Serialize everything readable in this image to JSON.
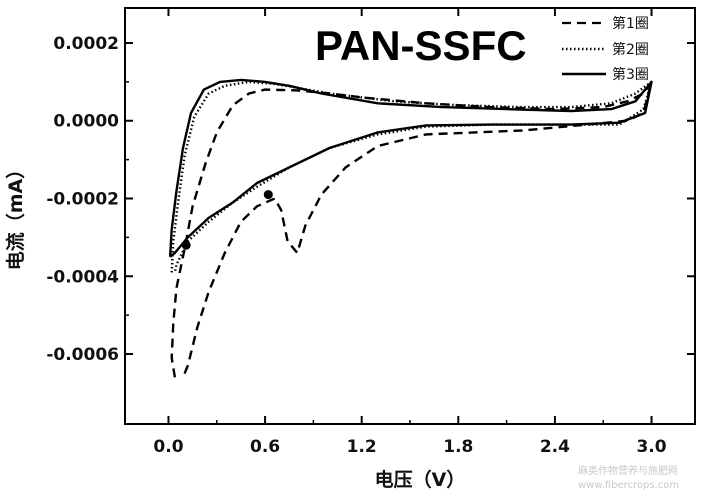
{
  "chart_data": {
    "type": "line",
    "title": "PAN-SSFC",
    "xlabel": "电压（V）",
    "ylabel": "电流（mA）",
    "xlim": [
      -0.27,
      3.27
    ],
    "ylim": [
      -0.00078,
      0.00029
    ],
    "x_ticks": [
      0.0,
      0.6,
      1.2,
      1.8,
      2.4,
      3.0
    ],
    "x_tick_labels": [
      "0.0",
      "0.6",
      "1.2",
      "1.8",
      "2.4",
      "3.0"
    ],
    "y_ticks": [
      0.0002,
      0.0,
      -0.0002,
      -0.0004,
      -0.0006
    ],
    "y_tick_labels": [
      "0.0002",
      "0.0000",
      "-0.0002",
      "-0.0004",
      "-0.0006"
    ],
    "legend_position": "top-right",
    "series": [
      {
        "name": "第1圈",
        "style": "dashed",
        "color": "#000000",
        "points": [
          [
            0.04,
            -0.00066
          ],
          [
            0.02,
            -0.00061
          ],
          [
            0.03,
            -0.00052
          ],
          [
            0.05,
            -0.00043
          ],
          [
            0.1,
            -0.00033
          ],
          [
            0.15,
            -0.00022
          ],
          [
            0.23,
            -0.00011
          ],
          [
            0.3,
            -3e-05
          ],
          [
            0.4,
            4e-05
          ],
          [
            0.5,
            7e-05
          ],
          [
            0.6,
            8e-05
          ],
          [
            0.8,
            7.8e-05
          ],
          [
            1.0,
            7e-05
          ],
          [
            1.2,
            6e-05
          ],
          [
            1.6,
            4.5e-05
          ],
          [
            2.0,
            3.5e-05
          ],
          [
            2.4,
            3e-05
          ],
          [
            2.7,
            3.5e-05
          ],
          [
            2.85,
            5e-05
          ],
          [
            2.95,
            7e-05
          ],
          [
            3.0,
            0.0001
          ],
          [
            2.95,
            2e-05
          ],
          [
            2.85,
            0.0
          ],
          [
            2.6,
            -1e-05
          ],
          [
            2.2,
            -2.5e-05
          ],
          [
            1.9,
            -3e-05
          ],
          [
            1.6,
            -3.5e-05
          ],
          [
            1.3,
            -6.5e-05
          ],
          [
            1.1,
            -0.00012
          ],
          [
            0.95,
            -0.00019
          ],
          [
            0.85,
            -0.00027
          ],
          [
            0.8,
            -0.00034
          ],
          [
            0.74,
            -0.00031
          ],
          [
            0.7,
            -0.00023
          ],
          [
            0.66,
            -0.0002
          ],
          [
            0.55,
            -0.00022
          ],
          [
            0.45,
            -0.00026
          ],
          [
            0.35,
            -0.00034
          ],
          [
            0.25,
            -0.00044
          ],
          [
            0.18,
            -0.00053
          ],
          [
            0.12,
            -0.00063
          ],
          [
            0.09,
            -0.00066
          ]
        ]
      },
      {
        "name": "第2圈",
        "style": "dotted",
        "color": "#000000",
        "points": [
          [
            0.02,
            -0.00039
          ],
          [
            0.03,
            -0.00031
          ],
          [
            0.06,
            -0.00021
          ],
          [
            0.1,
            -9e-05
          ],
          [
            0.16,
            1e-05
          ],
          [
            0.25,
            7e-05
          ],
          [
            0.35,
            9e-05
          ],
          [
            0.5,
            0.0001
          ],
          [
            0.65,
            9.5e-05
          ],
          [
            0.8,
            8.5e-05
          ],
          [
            1.0,
            7e-05
          ],
          [
            1.4,
            5e-05
          ],
          [
            1.8,
            4e-05
          ],
          [
            2.2,
            3.5e-05
          ],
          [
            2.5,
            3.5e-05
          ],
          [
            2.75,
            4.5e-05
          ],
          [
            2.9,
            7e-05
          ],
          [
            3.0,
            0.0001
          ],
          [
            2.95,
            3e-05
          ],
          [
            2.8,
            -1e-05
          ],
          [
            2.5,
            -1e-05
          ],
          [
            2.0,
            -1e-05
          ],
          [
            1.6,
            -1.5e-05
          ],
          [
            1.3,
            -3.5e-05
          ],
          [
            1.0,
            -7e-05
          ],
          [
            0.75,
            -0.00012
          ],
          [
            0.55,
            -0.00017
          ],
          [
            0.4,
            -0.00021
          ],
          [
            0.25,
            -0.00026
          ],
          [
            0.12,
            -0.00031
          ],
          [
            0.05,
            -0.00037
          ],
          [
            0.04,
            -0.00039
          ]
        ]
      },
      {
        "name": "第3圈",
        "style": "solid",
        "color": "#000000",
        "points": [
          [
            0.01,
            -0.00035
          ],
          [
            0.02,
            -0.00028
          ],
          [
            0.05,
            -0.00018
          ],
          [
            0.09,
            -7e-05
          ],
          [
            0.14,
            2e-05
          ],
          [
            0.22,
            8e-05
          ],
          [
            0.32,
            0.0001
          ],
          [
            0.45,
            0.000105
          ],
          [
            0.6,
            0.0001
          ],
          [
            0.75,
            9e-05
          ],
          [
            0.95,
            7e-05
          ],
          [
            1.3,
            4.5e-05
          ],
          [
            1.7,
            3.5e-05
          ],
          [
            2.1,
            3e-05
          ],
          [
            2.5,
            2.5e-05
          ],
          [
            2.75,
            3e-05
          ],
          [
            2.9,
            5e-05
          ],
          [
            3.0,
            0.0001
          ],
          [
            2.96,
            2e-05
          ],
          [
            2.8,
            -5e-06
          ],
          [
            2.5,
            -1e-05
          ],
          [
            2.0,
            -1e-05
          ],
          [
            1.6,
            -1.2e-05
          ],
          [
            1.3,
            -3e-05
          ],
          [
            1.0,
            -7e-05
          ],
          [
            0.75,
            -0.00012
          ],
          [
            0.55,
            -0.00016
          ],
          [
            0.4,
            -0.00021
          ],
          [
            0.25,
            -0.00025
          ],
          [
            0.12,
            -0.0003
          ],
          [
            0.04,
            -0.00034
          ],
          [
            0.01,
            -0.00035
          ]
        ]
      }
    ],
    "markers": [
      [
        0.62,
        -0.00019
      ],
      [
        0.11,
        -0.00032
      ]
    ]
  },
  "watermark": {
    "line1": "麻类作物营养与施肥网",
    "line2": "www.fibercrops.com"
  }
}
